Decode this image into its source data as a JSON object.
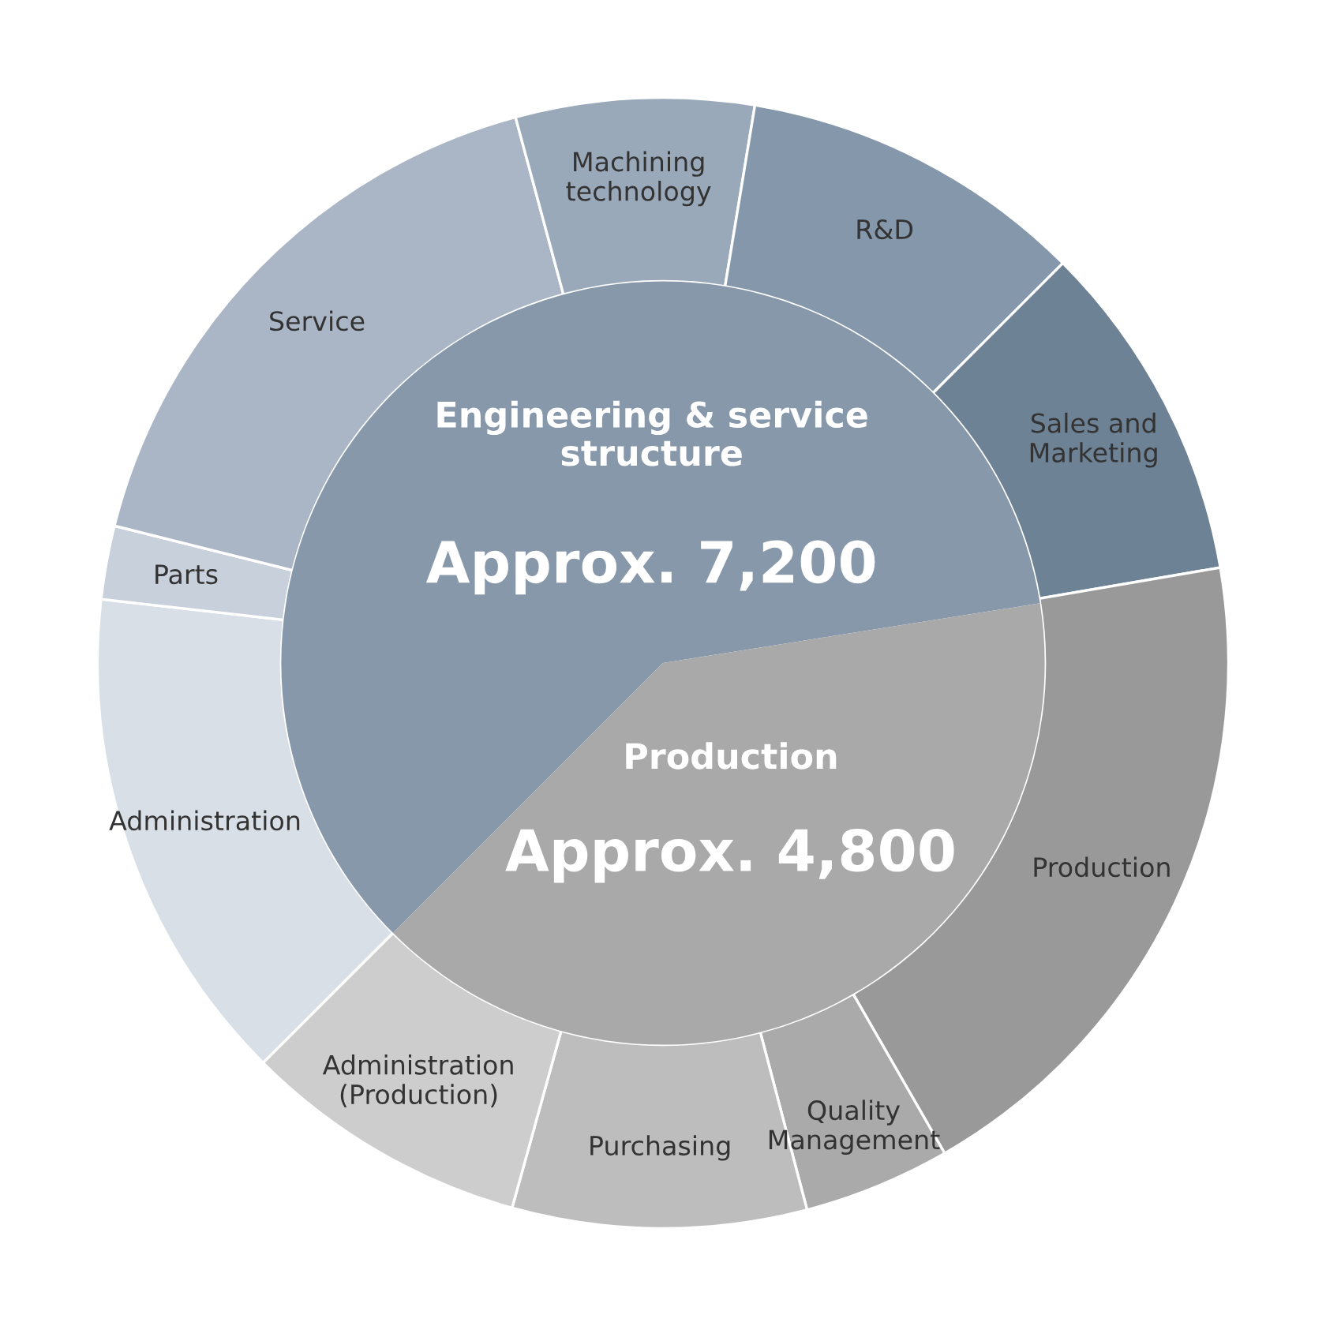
{
  "chart_data": {
    "type": "donut",
    "categories": [
      "Administration",
      "Parts",
      "Service",
      "Machining\ntechnology",
      "R&D",
      "Sales and\nMarketing",
      "Production",
      "Quality\nManagement",
      "Purchasing",
      "Administration\n(Production)"
    ],
    "colors": [
      "#d9dfe7",
      "#c8d0db",
      "#aab6c5",
      "#9aa9b9",
      "#8597ab",
      "#6e8296",
      "#999999",
      "#aaaaaa",
      "#bdbdbd",
      "#cdcdcd"
    ],
    "series": [
      {
        "values": [
          14.3,
          2.1,
          16.9,
          6.8,
          9.9,
          9.8,
          19.4,
          4.2,
          8.4,
          8.2
        ]
      },
      {
        "type": "pie",
        "values": [
          7200,
          4800,
          null,
          null,
          null,
          null,
          null,
          null,
          null,
          null
        ],
        "colors": [
          "#8898ab",
          "#a9a9a9",
          null,
          null,
          null,
          null,
          null,
          null,
          null,
          null
        ],
        "value_labels": [
          "Approx. 7,200",
          "Approx. 4,800",
          null,
          null,
          null,
          null,
          null,
          null,
          null,
          null
        ]
      }
    ],
    "annotations": [
      "Engineering & service\nstructure",
      "Production"
    ]
  }
}
